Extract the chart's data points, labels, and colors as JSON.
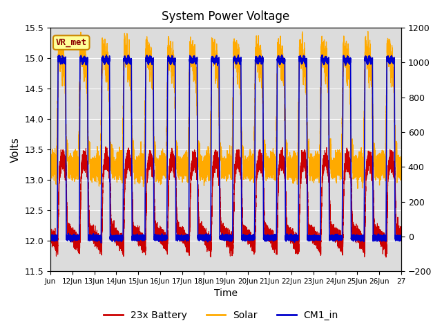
{
  "title": "System Power Voltage",
  "xlabel": "Time",
  "ylabel": "Volts",
  "ylim_left": [
    11.5,
    15.5
  ],
  "ylim_right": [
    -200,
    1200
  ],
  "x_tick_positions": [
    0,
    1,
    2,
    3,
    4,
    5,
    6,
    7,
    8,
    9,
    10,
    11,
    12,
    13,
    14,
    15,
    16
  ],
  "x_tick_labels": [
    "Jun",
    "12Jun",
    "13Jun",
    "14Jun",
    "15Jun",
    "16Jun",
    "17Jun",
    "18Jun",
    "19Jun",
    "20Jun",
    "21Jun",
    "22Jun",
    "23Jun",
    "24Jun",
    "25Jun",
    "26Jun",
    "27"
  ],
  "legend_labels": [
    "23x Battery",
    "Solar",
    "CM1_in"
  ],
  "legend_colors": [
    "#cc0000",
    "#ffaa00",
    "#0000cc"
  ],
  "vr_met_label": "VR_met",
  "background_color": "#dcdcdc",
  "right_yticks": [
    -200,
    0,
    200,
    400,
    600,
    800,
    1000,
    1200
  ],
  "left_yticks": [
    11.5,
    12.0,
    12.5,
    13.0,
    13.5,
    14.0,
    14.5,
    15.0,
    15.5
  ]
}
